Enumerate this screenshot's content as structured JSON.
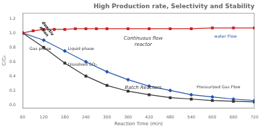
{
  "chart_data": {
    "type": "line",
    "title": "High Production rate, Selectivity and Stability",
    "xlabel": "Reaction Time (min)",
    "ylabel": "C/C₀",
    "xlim": [
      60,
      720
    ],
    "ylim": [
      -0.05,
      1.28
    ],
    "xticks": [
      60,
      120,
      180,
      240,
      300,
      360,
      420,
      480,
      540,
      600,
      660,
      720
    ],
    "yticks": [
      {
        "value": 0.0,
        "label": "0.0"
      },
      0.2,
      0.4,
      0.6,
      0.8,
      {
        "value": 1.0,
        "label": "1.0"
      },
      1.2
    ],
    "grid": false,
    "series": [
      {
        "color": "#cc2222",
        "marker": "square",
        "x": [
          60,
          90,
          120,
          150,
          180,
          210,
          240,
          270,
          300,
          360,
          420,
          480,
          540,
          600,
          660,
          720
        ],
        "values": [
          1.0,
          1.03,
          1.05,
          1.05,
          1.05,
          1.06,
          1.06,
          1.06,
          1.06,
          1.06,
          1.06,
          1.06,
          1.06,
          1.07,
          1.07,
          1.07
        ]
      },
      {
        "color": "#2255aa",
        "marker": "diamond",
        "x": [
          60,
          120,
          180,
          240,
          300,
          360,
          420,
          480,
          540,
          600,
          660,
          720
        ],
        "values": [
          1.0,
          0.9,
          0.75,
          0.6,
          0.46,
          0.35,
          0.26,
          0.2,
          0.14,
          0.11,
          0.08,
          0.06
        ]
      },
      {
        "color": "#333333",
        "marker": "square",
        "x": [
          60,
          120,
          180,
          240,
          300,
          360,
          420,
          480,
          540,
          600,
          660,
          720
        ],
        "values": [
          1.0,
          0.8,
          0.58,
          0.4,
          0.27,
          0.19,
          0.14,
          0.1,
          0.08,
          0.06,
          0.05,
          0.04
        ]
      }
    ],
    "annotations": [
      "Gas phase",
      "Liquid phase",
      "Dissolved CO₂",
      "deactiv\nation",
      "Continuous flow\nreactor",
      "Batch Reactors",
      "water Flow",
      "Pressurized Gas Flow"
    ]
  }
}
